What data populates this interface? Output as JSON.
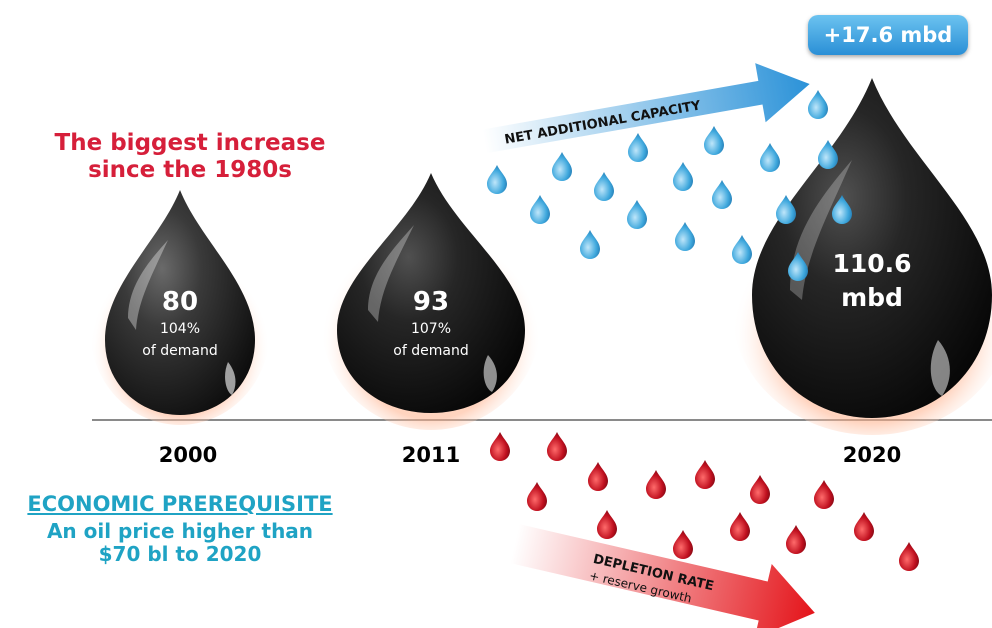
{
  "headline": {
    "line1": "The biggest increase",
    "line2": "since the 1980s"
  },
  "drops": [
    {
      "year": "2000",
      "value": "80",
      "pct": "104%",
      "sub": "of demand"
    },
    {
      "year": "2011",
      "value": "93",
      "pct": "107%",
      "sub": "of demand"
    },
    {
      "year": "2020",
      "value": "110.6",
      "unit": "mbd"
    }
  ],
  "capacity_badge": "+17.6 mbd",
  "arrows": {
    "up_label": "NET ADDITIONAL CAPACITY",
    "down_label": "DEPLETION RATE",
    "down_sub": "+ reserve growth"
  },
  "prerequisite": {
    "title": "ECONOMIC PREREQUISITE",
    "line1": "An oil price higher than",
    "line2": "$70 bl to 2020"
  },
  "colors": {
    "headline": "#d61f3a",
    "prerequisite": "#1fa3c4",
    "blue_drop": "#3fa8dd",
    "red_drop": "#c0101f",
    "oil": "#1b1b1b"
  }
}
